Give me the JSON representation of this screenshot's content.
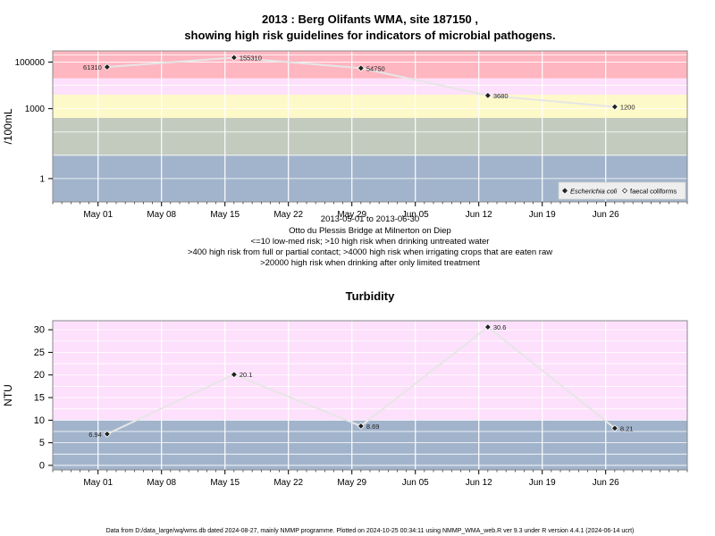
{
  "colors": {
    "band_blue": "#a2b4cc",
    "band_green": "#c2cbbe",
    "band_yellow": "#fef9c8",
    "band_pink": "#fde0fb",
    "band_red": "#feb6c0",
    "plot_border": "#888888",
    "line": "#e6e6e6",
    "marker": "#222222",
    "grid": "#ffffff"
  },
  "chart_data": [
    {
      "type": "line",
      "title": "2013 : Berg Olifants WMA, site 187150 ,",
      "subtitle": "showing high risk guidelines for indicators of microbial pathogens.",
      "ylabel": "/100mL",
      "yscale": "log",
      "ylim": [
        0.1,
        300000
      ],
      "yticks": [
        1,
        1000,
        100000
      ],
      "ytick_labels": [
        "1",
        "1000",
        "100000"
      ],
      "xlim": [
        "2013-04-26",
        "2013-07-05"
      ],
      "xticks": [
        "2013-05-01",
        "2013-05-08",
        "2013-05-15",
        "2013-05-22",
        "2013-05-29",
        "2013-06-05",
        "2013-06-12",
        "2013-06-19",
        "2013-06-26"
      ],
      "xtick_labels": [
        "May 01",
        "May 08",
        "May 15",
        "May 22",
        "May 29",
        "Jun 05",
        "Jun 12",
        "Jun 19",
        "Jun 26"
      ],
      "grid": true,
      "bands": [
        {
          "from": 0.1,
          "to": 10,
          "color": "#a2b4cc"
        },
        {
          "from": 10,
          "to": 400,
          "color": "#c2cbbe"
        },
        {
          "from": 400,
          "to": 4000,
          "color": "#fef9c8"
        },
        {
          "from": 4000,
          "to": 20000,
          "color": "#fde0fb"
        },
        {
          "from": 20000,
          "to": 300000,
          "color": "#feb6c0"
        }
      ],
      "legend": {
        "placement": "bottom-right",
        "entries": [
          {
            "label": "Escherichia coli",
            "marker": "diamond-filled"
          },
          {
            "label": "faecal coliforms",
            "marker": "diamond-open"
          }
        ]
      },
      "series": [
        {
          "name": "Escherichia coli",
          "x": [
            "2013-05-02",
            "2013-05-16",
            "2013-05-30",
            "2013-06-13",
            "2013-06-27"
          ],
          "values": [
            61310,
            155310,
            54750,
            3680,
            1200
          ],
          "labels": [
            "61310",
            "155310",
            "54750",
            "3680",
            "1200"
          ]
        }
      ],
      "caption": [
        "2013-05-01 to 2013-06-30",
        "Otto du Plessis Bridge at Milnerton on Diep",
        "<=10 low-med risk; >10 high risk when drinking untreated water",
        ">400 high risk from full or partial contact; >4000 high risk when irrigating crops that are eaten raw",
        ">20000 high risk when drinking after only limited treatment"
      ]
    },
    {
      "type": "line",
      "title": "Turbidity",
      "ylabel": "NTU",
      "ylim": [
        -1,
        32
      ],
      "yticks": [
        0,
        5,
        10,
        15,
        20,
        25,
        30
      ],
      "ytick_labels": [
        "0",
        "5",
        "10",
        "15",
        "20",
        "25",
        "30"
      ],
      "xlim": [
        "2013-04-26",
        "2013-07-05"
      ],
      "xticks": [
        "2013-05-01",
        "2013-05-08",
        "2013-05-15",
        "2013-05-22",
        "2013-05-29",
        "2013-06-05",
        "2013-06-12",
        "2013-06-19",
        "2013-06-26"
      ],
      "xtick_labels": [
        "May 01",
        "May 08",
        "May 15",
        "May 22",
        "May 29",
        "Jun 05",
        "Jun 12",
        "Jun 19",
        "Jun 26"
      ],
      "grid": true,
      "bands": [
        {
          "from": -1,
          "to": 10,
          "color": "#a2b4cc"
        },
        {
          "from": 10,
          "to": 32,
          "color": "#fde0fb"
        }
      ],
      "series": [
        {
          "name": "",
          "x": [
            "2013-05-02",
            "2013-05-16",
            "2013-05-30",
            "2013-06-13",
            "2013-06-27"
          ],
          "values": [
            6.94,
            20.1,
            8.69,
            30.6,
            8.21
          ],
          "labels": [
            "6.94",
            "20.1",
            "8.69",
            "30.6",
            "8.21"
          ]
        }
      ]
    }
  ],
  "footer": "Data from D:/data_large/wq/wms.db dated 2024-08-27, mainly NMMP programme. Plotted on 2024-10-25 00:34:11 using NMMP_WMA_web.R ver 9.3 under R version 4.4.1 (2024-06-14 ucrt)"
}
